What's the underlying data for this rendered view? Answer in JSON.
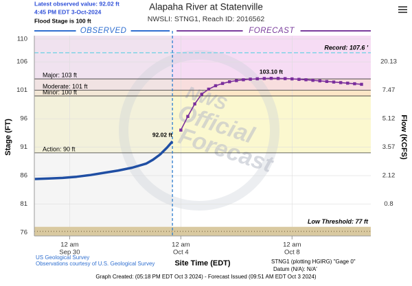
{
  "chart_data": {
    "type": "hydrograph",
    "title": "Alapaha River at Statenville",
    "subtitle": "NWSLI: STNG1, Reach ID: 2016562",
    "latest_observed": "Latest observed value: 92.02 ft",
    "latest_time": "4:45 PM EDT 3-Oct-2024",
    "flood_stage": "Flood Stage is 100 ft",
    "observed_label": "OBSERVED",
    "forecast_label": "FORECAST",
    "y_label": "Stage (FT)",
    "y2_label": "Flow (KCFS)",
    "x_label": "Site Time (EDT)",
    "watermark": [
      "NWS",
      "Official",
      "Forecast"
    ],
    "footer": {
      "source": "US Geological Survey",
      "courtesy": "Observations courtesy of U.S. Geological Survey",
      "gauge": "STNG1 (plotting HGIRG) \"Gage 0\"",
      "datum": "Datum (N/A): N/A'",
      "created": "Graph Created: (05:18 PM EDT Oct 3 2024) - Forecast Issued (09:51 AM EDT Oct 3 2024)"
    },
    "xlim": [
      "2024-09-28T17:30",
      "2024-10-10T20:00"
    ],
    "xticks": [
      {
        "value": "2024-09-30T00:00",
        "label": "12 am"
      },
      {
        "value": "2024-10-04T00:00",
        "label": "12 am"
      },
      {
        "value": "2024-10-08T00:00",
        "label": "12 am"
      }
    ],
    "xtick_dates": [
      "Sep 30",
      "Oct 4",
      "Oct 8"
    ],
    "ylim": [
      75.4,
      110.6
    ],
    "yticks": [
      76,
      81,
      86,
      91,
      96,
      101,
      106,
      110
    ],
    "y2ticks": [
      0.8,
      2.12,
      3.57,
      5.12,
      7.47,
      20.13
    ],
    "grid": true,
    "thresholds": [
      {
        "label": "Record: 107.6 '",
        "value": 107.6,
        "color": "#7fd3e6",
        "dashed": true
      },
      {
        "label": "Major: 103 ft",
        "value": 103,
        "color": "#f6dcf4"
      },
      {
        "label": "Moderate: 101 ft",
        "value": 101,
        "color": "#f8dede"
      },
      {
        "label": "Minor: 100 ft",
        "value": 100,
        "color": "#fce6c6"
      },
      {
        "label": "Action: 90 ft",
        "value": 90,
        "color": "#fbf8cf"
      },
      {
        "label": "Low Threshold: 77 ft",
        "value": 77,
        "color": "#d9c9a0",
        "below": true
      }
    ],
    "series": [
      {
        "name": "Observed",
        "color": "#1f4ea3",
        "x": [
          "2024-09-28T18:00",
          "2024-09-29T06:00",
          "2024-09-29T18:00",
          "2024-09-30T06:00",
          "2024-09-30T18:00",
          "2024-10-01T06:00",
          "2024-10-01T18:00",
          "2024-10-02T06:00",
          "2024-10-02T18:00",
          "2024-10-03T00:00",
          "2024-10-03T06:00",
          "2024-10-03T12:00",
          "2024-10-03T16:45"
        ],
        "values": [
          85.4,
          85.5,
          85.6,
          85.8,
          86.1,
          86.5,
          86.9,
          87.4,
          88.1,
          88.8,
          89.7,
          90.9,
          92.02
        ],
        "value_labels": [
          null,
          null,
          null,
          null,
          null,
          null,
          null,
          null,
          null,
          null,
          null,
          null,
          "92.02 ft"
        ]
      },
      {
        "name": "Forecast",
        "color": "#7a2e9c",
        "x": [
          "2024-10-04T00:00",
          "2024-10-04T06:00",
          "2024-10-04T12:00",
          "2024-10-04T18:00",
          "2024-10-05T00:00",
          "2024-10-05T06:00",
          "2024-10-05T12:00",
          "2024-10-05T18:00",
          "2024-10-06T00:00",
          "2024-10-06T06:00",
          "2024-10-06T12:00",
          "2024-10-06T18:00",
          "2024-10-07T00:00",
          "2024-10-07T06:00",
          "2024-10-07T12:00",
          "2024-10-07T18:00",
          "2024-10-08T00:00",
          "2024-10-08T06:00",
          "2024-10-08T12:00",
          "2024-10-08T18:00",
          "2024-10-09T00:00",
          "2024-10-09T06:00",
          "2024-10-09T12:00",
          "2024-10-09T18:00",
          "2024-10-10T00:00",
          "2024-10-10T06:00",
          "2024-10-10T12:00"
        ],
        "values": [
          94.0,
          96.4,
          98.6,
          100.3,
          101.2,
          101.8,
          102.2,
          102.5,
          102.7,
          102.85,
          102.95,
          103.02,
          103.07,
          103.1,
          103.08,
          103.05,
          103.0,
          102.92,
          102.85,
          102.75,
          102.65,
          102.55,
          102.45,
          102.35,
          102.25,
          102.15,
          102.05
        ],
        "value_labels": [
          null,
          null,
          null,
          null,
          null,
          null,
          null,
          null,
          null,
          null,
          null,
          null,
          null,
          "103.10 ft",
          null,
          null,
          null,
          null,
          null,
          null,
          null,
          null,
          null,
          null,
          null,
          null,
          null
        ]
      }
    ]
  }
}
